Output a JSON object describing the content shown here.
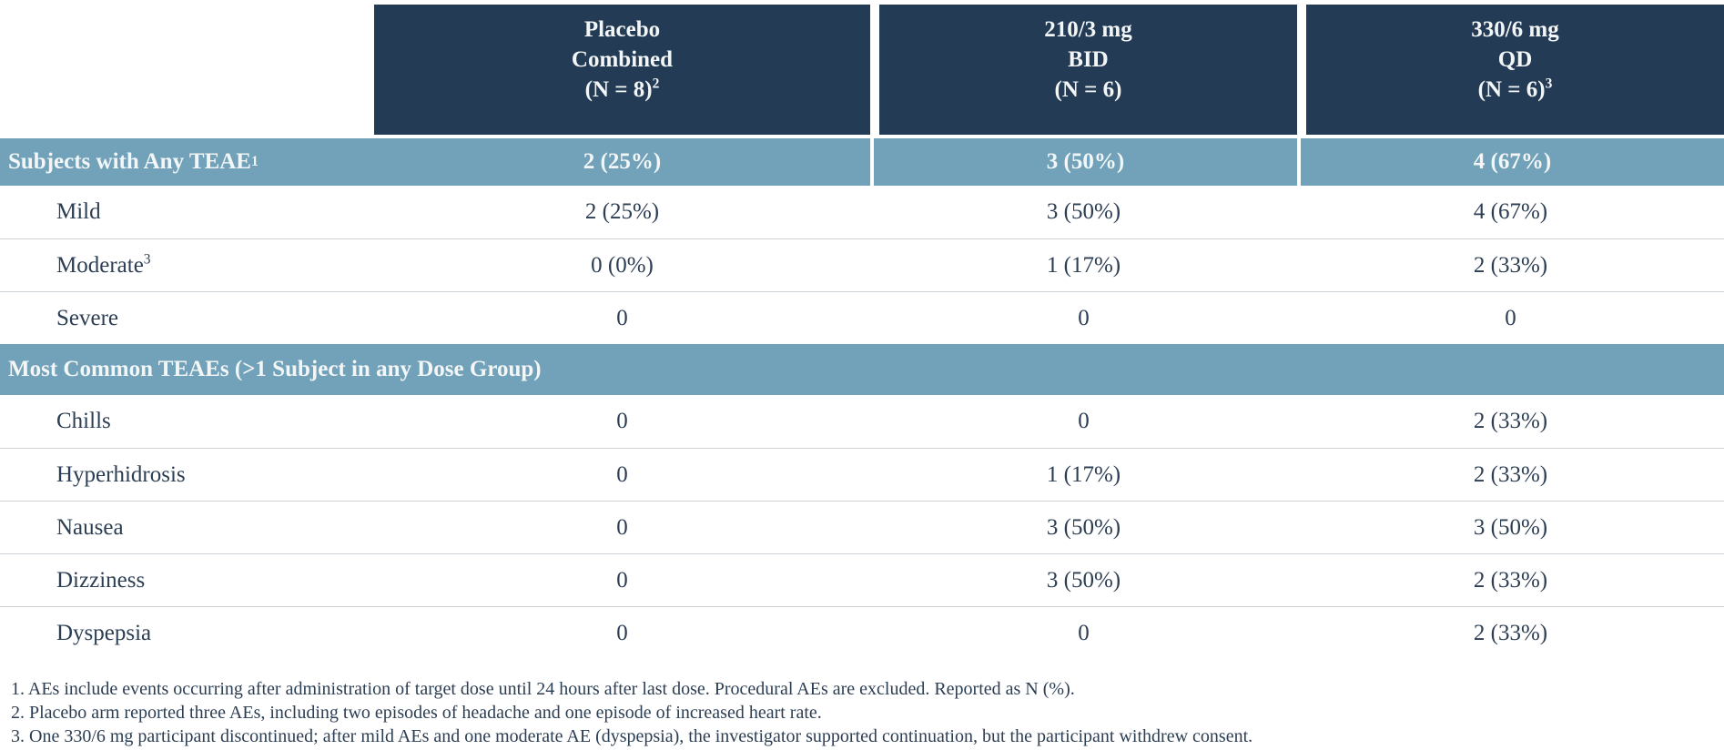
{
  "colors": {
    "header_bg": "#243B55",
    "band_bg": "#71A2BA",
    "body_text": "#2C3E53",
    "row_divider": "#CDD2D6",
    "header_text": "#F3F6F7"
  },
  "table": {
    "header": {
      "cols": [
        {
          "line1": "Placebo",
          "line2": "Combined",
          "line3": "(N = 8)",
          "sup": "2"
        },
        {
          "line1": "210/3 mg",
          "line2": "BID",
          "line3": "(N = 6)",
          "sup": ""
        },
        {
          "line1": "330/6 mg",
          "line2": "QD",
          "line3": "(N = 6)",
          "sup": "3"
        }
      ]
    },
    "section_any_teae": {
      "label": "Subjects with Any TEAE",
      "sup": "1",
      "values": [
        "2 (25%)",
        "3 (50%)",
        "4 (67%)"
      ]
    },
    "severity_rows": [
      {
        "label": "Mild",
        "sup": "",
        "values": [
          "2 (25%)",
          "3 (50%)",
          "4 (67%)"
        ]
      },
      {
        "label": "Moderate",
        "sup": "3",
        "values": [
          "0 (0%)",
          "1 (17%)",
          "2 (33%)"
        ]
      },
      {
        "label": "Severe",
        "sup": "",
        "values": [
          "0",
          "0",
          "0"
        ]
      }
    ],
    "section_most_common": {
      "label": "Most Common TEAEs (>1 Subject in any Dose Group)"
    },
    "teae_rows": [
      {
        "label": "Chills",
        "values": [
          "0",
          "0",
          "2 (33%)"
        ]
      },
      {
        "label": "Hyperhidrosis",
        "values": [
          "0",
          "1 (17%)",
          "2 (33%)"
        ]
      },
      {
        "label": "Nausea",
        "values": [
          "0",
          "3 (50%)",
          "3 (50%)"
        ]
      },
      {
        "label": "Dizziness",
        "values": [
          "0",
          "3 (50%)",
          "2 (33%)"
        ]
      },
      {
        "label": "Dyspepsia",
        "values": [
          "0",
          "0",
          "2 (33%)"
        ]
      }
    ],
    "footnotes": [
      "1. AEs include events occurring after administration of target dose until 24 hours after last dose. Procedural AEs are excluded. Reported as N (%).",
      "2. Placebo arm reported three AEs, including two episodes of headache and one episode of increased heart rate.",
      "3. One 330/6 mg participant discontinued; after mild AEs and one moderate AE (dyspepsia), the investigator supported continuation, but the participant withdrew consent."
    ]
  }
}
